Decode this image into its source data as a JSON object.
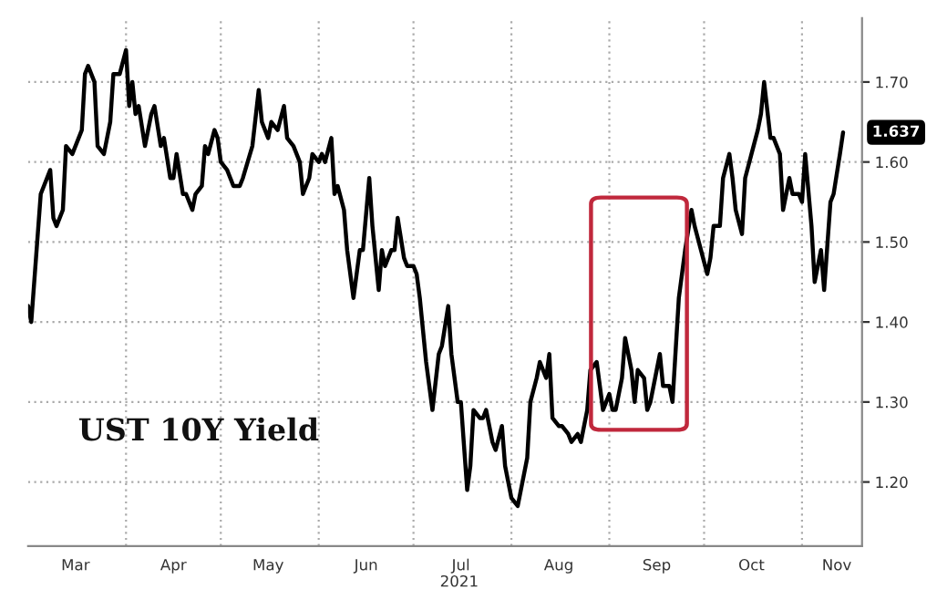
{
  "chart_data": {
    "type": "line",
    "title": "UST 10Y Yield",
    "annotations": [
      "2021",
      {
        "text": "1.637",
        "x": "2021-11-14",
        "y": 1.637
      }
    ],
    "x": [
      "2021-03-01",
      "2021-03-02",
      "2021-03-05",
      "2021-03-06",
      "2021-03-08",
      "2021-03-09",
      "2021-03-10",
      "2021-03-12",
      "2021-03-13",
      "2021-03-15",
      "2021-03-18",
      "2021-03-19",
      "2021-03-20",
      "2021-03-22",
      "2021-03-23",
      "2021-03-25",
      "2021-03-27",
      "2021-03-28",
      "2021-03-30",
      "2021-04-01",
      "2021-04-02",
      "2021-04-03",
      "2021-04-04",
      "2021-04-05",
      "2021-04-07",
      "2021-04-09",
      "2021-04-10",
      "2021-04-12",
      "2021-04-13",
      "2021-04-15",
      "2021-04-16",
      "2021-04-17",
      "2021-04-19",
      "2021-04-20",
      "2021-04-22",
      "2021-04-23",
      "2021-04-25",
      "2021-04-26",
      "2021-04-27",
      "2021-04-29",
      "2021-04-30",
      "2021-05-01",
      "2021-05-03",
      "2021-05-05",
      "2021-05-07",
      "2021-05-08",
      "2021-05-11",
      "2021-05-13",
      "2021-05-14",
      "2021-05-16",
      "2021-05-17",
      "2021-05-19",
      "2021-05-21",
      "2021-05-22",
      "2021-05-24",
      "2021-05-26",
      "2021-05-27",
      "2021-05-29",
      "2021-05-30",
      "2021-06-01",
      "2021-06-02",
      "2021-06-03",
      "2021-06-05",
      "2021-06-06",
      "2021-06-07",
      "2021-06-09",
      "2021-06-10",
      "2021-06-12",
      "2021-06-13",
      "2021-06-14",
      "2021-06-15",
      "2021-06-17",
      "2021-06-18",
      "2021-06-20",
      "2021-06-21",
      "2021-06-22",
      "2021-06-24",
      "2021-06-25",
      "2021-06-26",
      "2021-06-28",
      "2021-06-29",
      "2021-07-01",
      "2021-07-02",
      "2021-07-03",
      "2021-07-05",
      "2021-07-06",
      "2021-07-07",
      "2021-07-09",
      "2021-07-10",
      "2021-07-12",
      "2021-07-13",
      "2021-07-15",
      "2021-07-16",
      "2021-07-18",
      "2021-07-19",
      "2021-07-20",
      "2021-07-22",
      "2021-07-23",
      "2021-07-24",
      "2021-07-26",
      "2021-07-27",
      "2021-07-29",
      "2021-07-30",
      "2021-08-01",
      "2021-08-03",
      "2021-08-04",
      "2021-08-06",
      "2021-08-07",
      "2021-08-09",
      "2021-08-10",
      "2021-08-12",
      "2021-08-13",
      "2021-08-14",
      "2021-08-16",
      "2021-08-17",
      "2021-08-19",
      "2021-08-20",
      "2021-08-22",
      "2021-08-23",
      "2021-08-25",
      "2021-08-26",
      "2021-08-28",
      "2021-08-29",
      "2021-08-30",
      "2021-09-01",
      "2021-09-02",
      "2021-09-03",
      "2021-09-05",
      "2021-09-06",
      "2021-09-08",
      "2021-09-09",
      "2021-09-10",
      "2021-09-12",
      "2021-09-13",
      "2021-09-14",
      "2021-09-16",
      "2021-09-17",
      "2021-09-18",
      "2021-09-20",
      "2021-09-21",
      "2021-09-23",
      "2021-09-24",
      "2021-09-25",
      "2021-09-27",
      "2021-09-28",
      "2021-09-30",
      "2021-10-02",
      "2021-10-03",
      "2021-10-04",
      "2021-10-06",
      "2021-10-07",
      "2021-10-09",
      "2021-10-10",
      "2021-10-11",
      "2021-10-13",
      "2021-10-14",
      "2021-10-16",
      "2021-10-18",
      "2021-10-19",
      "2021-10-20",
      "2021-10-22",
      "2021-10-23",
      "2021-10-25",
      "2021-10-26",
      "2021-10-28",
      "2021-10-29",
      "2021-10-31",
      "2021-11-01",
      "2021-11-02",
      "2021-11-04",
      "2021-11-05",
      "2021-11-07",
      "2021-11-08",
      "2021-11-10",
      "2021-11-11",
      "2021-11-13",
      "2021-11-14"
    ],
    "series": [
      {
        "color": "#000000",
        "values": [
          1.42,
          1.4,
          1.56,
          1.57,
          1.59,
          1.53,
          1.52,
          1.54,
          1.62,
          1.61,
          1.64,
          1.71,
          1.72,
          1.7,
          1.62,
          1.61,
          1.65,
          1.71,
          1.71,
          1.74,
          1.67,
          1.7,
          1.66,
          1.67,
          1.62,
          1.66,
          1.67,
          1.62,
          1.63,
          1.58,
          1.58,
          1.61,
          1.56,
          1.56,
          1.54,
          1.56,
          1.57,
          1.62,
          1.61,
          1.64,
          1.63,
          1.6,
          1.59,
          1.57,
          1.57,
          1.58,
          1.62,
          1.69,
          1.65,
          1.63,
          1.65,
          1.64,
          1.67,
          1.63,
          1.62,
          1.6,
          1.56,
          1.58,
          1.61,
          1.6,
          1.61,
          1.6,
          1.63,
          1.56,
          1.57,
          1.54,
          1.49,
          1.43,
          1.46,
          1.49,
          1.49,
          1.58,
          1.52,
          1.44,
          1.49,
          1.47,
          1.49,
          1.49,
          1.53,
          1.48,
          1.47,
          1.47,
          1.46,
          1.43,
          1.35,
          1.32,
          1.29,
          1.36,
          1.37,
          1.42,
          1.36,
          1.3,
          1.3,
          1.19,
          1.22,
          1.29,
          1.28,
          1.28,
          1.29,
          1.25,
          1.24,
          1.27,
          1.22,
          1.18,
          1.17,
          1.19,
          1.23,
          1.3,
          1.33,
          1.35,
          1.33,
          1.36,
          1.28,
          1.27,
          1.27,
          1.26,
          1.25,
          1.26,
          1.25,
          1.29,
          1.34,
          1.35,
          1.32,
          1.29,
          1.31,
          1.29,
          1.29,
          1.33,
          1.38,
          1.34,
          1.3,
          1.34,
          1.33,
          1.29,
          1.3,
          1.34,
          1.36,
          1.32,
          1.32,
          1.3,
          1.43,
          1.46,
          1.49,
          1.54,
          1.52,
          1.49,
          1.46,
          1.48,
          1.52,
          1.52,
          1.58,
          1.61,
          1.58,
          1.54,
          1.51,
          1.58,
          1.61,
          1.64,
          1.66,
          1.7,
          1.63,
          1.63,
          1.61,
          1.54,
          1.58,
          1.56,
          1.56,
          1.55,
          1.61,
          1.52,
          1.45,
          1.49,
          1.44,
          1.55,
          1.56,
          1.61,
          1.637
        ]
      }
    ],
    "xlim": [
      "2021-03-01",
      "2021-11-20"
    ],
    "xticks": [
      {
        "value": "2021-04-01",
        "label": null
      },
      {
        "value": "2021-05-01",
        "label": null
      },
      {
        "value": "2021-06-01",
        "label": null
      },
      {
        "value": "2021-07-01",
        "label": null
      },
      {
        "value": "2021-08-01",
        "label": null
      },
      {
        "value": "2021-09-01",
        "label": null
      },
      {
        "value": "2021-10-01",
        "label": null
      },
      {
        "value": "2021-11-01",
        "label": null
      },
      {
        "value": "2021-03-16",
        "label": "Mar"
      },
      {
        "value": "2021-04-16",
        "label": "Apr"
      },
      {
        "value": "2021-05-16",
        "label": "May"
      },
      {
        "value": "2021-06-16",
        "label": "Jun"
      },
      {
        "value": "2021-07-16",
        "label": "Jul"
      },
      {
        "value": "2021-08-16",
        "label": "Aug"
      },
      {
        "value": "2021-09-16",
        "label": "Sep"
      },
      {
        "value": "2021-10-16",
        "label": "Oct"
      },
      {
        "value": "2021-11-12",
        "label": "Nov"
      }
    ],
    "ylim": [
      1.12,
      1.78
    ],
    "yticks": [
      {
        "value": 1.2,
        "label": "1.20"
      },
      {
        "value": 1.3,
        "label": "1.30"
      },
      {
        "value": 1.4,
        "label": "1.40"
      },
      {
        "value": 1.5,
        "label": "1.50"
      },
      {
        "value": 1.6,
        "label": "1.60"
      },
      {
        "value": 1.7,
        "label": "1.70"
      }
    ],
    "grid": true,
    "legend": false,
    "marker": "none",
    "line_style": "solid"
  }
}
